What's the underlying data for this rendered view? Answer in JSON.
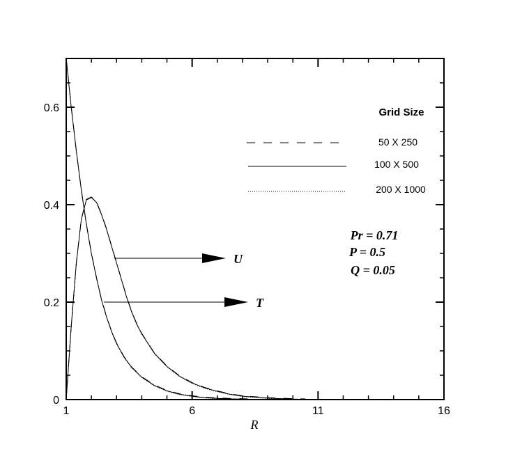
{
  "chart_data": {
    "type": "line",
    "xlabel": "R",
    "ylabel": "",
    "xlim": [
      1,
      16
    ],
    "ylim": [
      0,
      0.7
    ],
    "x_ticks": [
      1,
      6,
      11,
      16
    ],
    "x_tick_labels": [
      "1",
      "6",
      "11",
      "16"
    ],
    "y_ticks": [
      0,
      0.2,
      0.4,
      0.6
    ],
    "y_tick_labels": [
      "0",
      "0.2",
      "0.4",
      "0.6"
    ],
    "grid": false,
    "legend": {
      "title": "Grid Size",
      "placement": "top-right",
      "entries": [
        {
          "label": "50 X 250",
          "style": "dashed"
        },
        {
          "label": "100 X 500",
          "style": "solid"
        },
        {
          "label": "200 X 1000",
          "style": "dotted"
        }
      ]
    },
    "annotations": [
      "Pr = 0.71",
      "P = 0.5",
      "Q = 0.05"
    ],
    "curve_labels": [
      {
        "text": "U",
        "series": "U",
        "at_x": 2.9,
        "at_y": 0.29
      },
      {
        "text": "T",
        "series": "T",
        "at_x": 2.5,
        "at_y": 0.2
      }
    ],
    "series": [
      {
        "id": "U",
        "x": [
          1,
          1.2,
          1.4,
          1.6,
          1.8,
          2.0,
          2.2,
          2.4,
          2.6,
          2.8,
          3.0,
          3.2,
          3.4,
          3.6,
          3.8,
          4.0,
          4.5,
          5.0,
          5.5,
          6.0,
          6.5,
          7.0,
          7.5,
          8.0,
          8.5,
          9.0,
          9.5,
          10.0,
          10.5
        ],
        "values": [
          0,
          0.15,
          0.28,
          0.37,
          0.41,
          0.415,
          0.405,
          0.38,
          0.35,
          0.315,
          0.28,
          0.245,
          0.21,
          0.18,
          0.155,
          0.135,
          0.095,
          0.068,
          0.048,
          0.034,
          0.024,
          0.017,
          0.011,
          0.007,
          0.005,
          0.003,
          0.002,
          0.001,
          0.0005
        ]
      },
      {
        "id": "T",
        "x": [
          1,
          1.2,
          1.4,
          1.6,
          1.8,
          2.0,
          2.2,
          2.4,
          2.6,
          2.8,
          3.0,
          3.3,
          3.6,
          4.0,
          4.5,
          5.0,
          5.5,
          6.0,
          6.5,
          7.0,
          7.5,
          8.0,
          8.5
        ],
        "values": [
          0.7,
          0.6,
          0.51,
          0.43,
          0.36,
          0.3,
          0.25,
          0.205,
          0.17,
          0.14,
          0.115,
          0.087,
          0.066,
          0.046,
          0.029,
          0.018,
          0.011,
          0.007,
          0.004,
          0.0025,
          0.0015,
          0.001,
          0.0005
        ]
      }
    ]
  }
}
